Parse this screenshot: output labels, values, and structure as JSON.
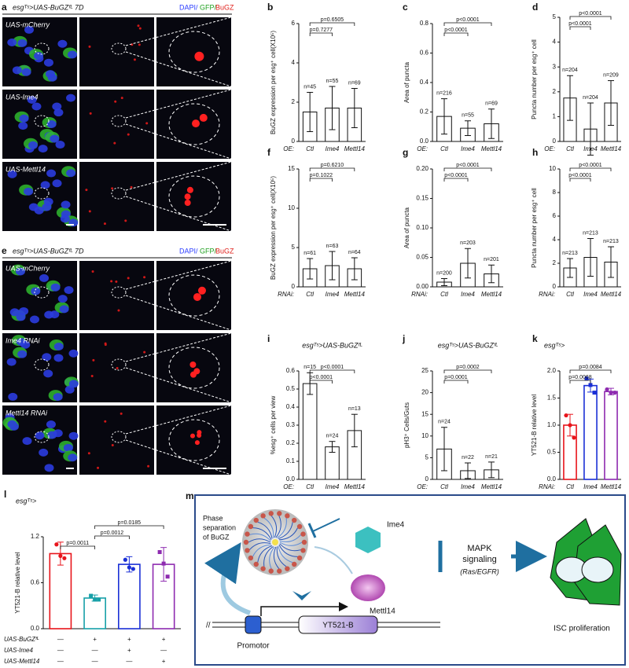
{
  "image_panels": [
    {
      "panel_label": "a",
      "title": "esgᵀˢ>UAS-BuGZᶠᴸ 7D",
      "channels": [
        {
          "text": "DAPI/",
          "color": "#2b3cff"
        },
        {
          "text": "GFP/",
          "color": "#1fa01f"
        },
        {
          "text": "BuGZ",
          "color": "#e0201b"
        }
      ],
      "rows": [
        "UAS-mCherry",
        "UAS-Ime4",
        "UAS-Mettl14"
      ]
    },
    {
      "panel_label": "e",
      "title": "esgᵀˢ>UAS-BuGZᶠᴸ 7D",
      "channels": [
        {
          "text": "DAPI/",
          "color": "#2b3cff"
        },
        {
          "text": "GFP/",
          "color": "#1fa01f"
        },
        {
          "text": "BuGZ",
          "color": "#e0201b"
        }
      ],
      "rows": [
        "UAS-mCherry",
        "Ime4 RNAi",
        "Mettl14 RNAi"
      ]
    }
  ],
  "chart_data": [
    {
      "type": "bar",
      "panel_label": "b",
      "ylabel": "BuGZ expression per esg⁺ cell(X10⁵)",
      "group_label": "OE:",
      "categories": [
        "Ctl",
        "Ime4",
        "Mettl14"
      ],
      "colors": [
        "#e8141b",
        "#1a2fd6",
        "#8e2bb0"
      ],
      "bar_style": "black-outline",
      "values": [
        1.5,
        1.7,
        1.7
      ],
      "errors": [
        1.0,
        1.1,
        1.0
      ],
      "n_labels": [
        "n=45",
        "n=55",
        "n=69"
      ],
      "comparisons": [
        {
          "from": 0,
          "to": 1,
          "label": "p=0.7277"
        },
        {
          "from": 0,
          "to": 2,
          "label": "p=0.6505"
        }
      ],
      "ylim": [
        0,
        6
      ],
      "yticks": [
        0,
        2,
        4,
        6
      ]
    },
    {
      "type": "bar",
      "panel_label": "c",
      "ylabel": "Area of puncta",
      "group_label": "OE:",
      "categories": [
        "Ctl",
        "Ime4",
        "Mettl14"
      ],
      "colors": [
        "#e8141b",
        "#1a2fd6",
        "#8e2bb0"
      ],
      "bar_style": "black-outline",
      "values": [
        0.17,
        0.09,
        0.12
      ],
      "errors": [
        0.12,
        0.05,
        0.1
      ],
      "n_labels": [
        "n=216",
        "n=55",
        "n=69"
      ],
      "comparisons": [
        {
          "from": 0,
          "to": 1,
          "label": "p<0.0001"
        },
        {
          "from": 0,
          "to": 2,
          "label": "p<0.0001"
        }
      ],
      "ylim": [
        0,
        0.8
      ],
      "yticks": [
        {
          "value": 0,
          "label": "0.0"
        },
        0.2,
        0.4,
        0.6,
        0.8
      ]
    },
    {
      "type": "bar",
      "panel_label": "d",
      "ylabel": "Puncta number per esg⁺ cell",
      "group_label": "OE:",
      "categories": [
        "Ctl",
        "Ime4",
        "Mettl14"
      ],
      "colors": [
        "#e8141b",
        "#1a2fd6",
        "#8e2bb0"
      ],
      "bar_style": "black-outline",
      "values": [
        1.75,
        0.5,
        1.55
      ],
      "errors": [
        0.9,
        1.05,
        0.9
      ],
      "n_labels": [
        "n=204",
        "n=204",
        "n=209"
      ],
      "comparisons": [
        {
          "from": 0,
          "to": 1,
          "label": "p<0.0001"
        },
        {
          "from": 0,
          "to": 2,
          "label": "p<0.0001"
        }
      ],
      "ylim": [
        0,
        5
      ],
      "yticks": [
        0,
        1,
        2,
        3,
        4,
        5
      ]
    },
    {
      "type": "bar",
      "panel_label": "f",
      "ylabel": "BuGZ expression per esg⁺ cell(X10⁵)",
      "group_label": "RNAi:",
      "categories": [
        "Ctl",
        "Ime4",
        "Mettl14"
      ],
      "colors": [
        "#e8141b",
        "#1a2fd6",
        "#8e2bb0"
      ],
      "bar_style": "black-outline",
      "values": [
        2.3,
        2.7,
        2.3
      ],
      "errors": [
        1.3,
        1.8,
        1.4
      ],
      "n_labels": [
        "n=61",
        "n=63",
        "n=64"
      ],
      "comparisons": [
        {
          "from": 0,
          "to": 1,
          "label": "p=0.1022"
        },
        {
          "from": 0,
          "to": 2,
          "label": "p=0.6210"
        }
      ],
      "ylim": [
        0,
        15
      ],
      "yticks": [
        0,
        5,
        10,
        15
      ]
    },
    {
      "type": "bar",
      "panel_label": "g",
      "ylabel": "Area of puncta",
      "group_label": "RNAi:",
      "categories": [
        "Ctl",
        "Ime4",
        "Mettl14"
      ],
      "colors": [
        "#e8141b",
        "#1a2fd6",
        "#8e2bb0"
      ],
      "bar_style": "black-outline",
      "values": [
        0.008,
        0.04,
        0.022
      ],
      "errors": [
        0.006,
        0.025,
        0.015
      ],
      "n_labels": [
        "n=200",
        "n=203",
        "n=201"
      ],
      "comparisons": [
        {
          "from": 0,
          "to": 1,
          "label": "p<0.0001"
        },
        {
          "from": 0,
          "to": 2,
          "label": "p<0.0001"
        }
      ],
      "ylim": [
        0,
        0.2
      ],
      "yticks": [
        {
          "value": 0,
          "label": "0.00"
        },
        0.05,
        {
          "value": 0.1,
          "label": "0.10"
        },
        0.15,
        {
          "value": 0.2,
          "label": "0.20"
        }
      ]
    },
    {
      "type": "bar",
      "panel_label": "h",
      "ylabel": "Puncta number per esg⁺ cell",
      "group_label": "RNAi:",
      "categories": [
        "Ctl",
        "Ime4",
        "Mettl14"
      ],
      "colors": [
        "#e8141b",
        "#1a2fd6",
        "#8e2bb0"
      ],
      "bar_style": "black-outline",
      "values": [
        1.6,
        2.5,
        2.1
      ],
      "errors": [
        0.8,
        1.6,
        1.3
      ],
      "n_labels": [
        "n=213",
        "n=213",
        "n=213"
      ],
      "comparisons": [
        {
          "from": 0,
          "to": 1,
          "label": "p<0.0001"
        },
        {
          "from": 0,
          "to": 2,
          "label": "p<0.0001"
        }
      ],
      "ylim": [
        0,
        10
      ],
      "yticks": [
        0,
        2,
        4,
        6,
        8,
        10
      ]
    },
    {
      "type": "bar",
      "panel_label": "i",
      "title": "esgᵀˢ>UAS-BuGZᶠᴸ",
      "ylabel": "%esg⁺ cells per view",
      "group_label": "OE:",
      "categories": [
        "Ctl",
        "Ime4",
        "Mettl14"
      ],
      "colors": [
        "#e8141b",
        "#1a2fd6",
        "#8e2bb0"
      ],
      "bar_style": "black-outline",
      "values": [
        0.53,
        0.18,
        0.27
      ],
      "errors": [
        0.06,
        0.03,
        0.09
      ],
      "n_labels": [
        "n=15",
        "n=24",
        "n=13"
      ],
      "comparisons": [
        {
          "from": 0,
          "to": 1,
          "label": "p<0.0001"
        },
        {
          "from": 0,
          "to": 2,
          "label": "p<0.0001"
        }
      ],
      "ylim": [
        0,
        0.6
      ],
      "yticks": [
        {
          "value": 0,
          "label": "0.0"
        },
        0.1,
        0.2,
        0.3,
        0.4,
        0.5,
        0.6
      ]
    },
    {
      "type": "bar",
      "panel_label": "j",
      "title": "esgᵀˢ>UAS-BuGZᶠᴸ",
      "ylabel": "pH3⁺ Cells/Guts",
      "group_label": "OE:",
      "categories": [
        "Ctl",
        "Ime4",
        "Mettl14"
      ],
      "colors": [
        "#e8141b",
        "#1a2fd6",
        "#8e2bb0"
      ],
      "bar_style": "black-outline",
      "values": [
        7,
        2,
        2.2
      ],
      "errors": [
        5,
        1.8,
        1.8
      ],
      "n_labels": [
        "n=24",
        "n=22",
        "n=21"
      ],
      "comparisons": [
        {
          "from": 0,
          "to": 1,
          "label": "p=0.0001"
        },
        {
          "from": 0,
          "to": 2,
          "label": "p=0.0002"
        }
      ],
      "ylim": [
        0,
        25
      ],
      "yticks": [
        0,
        5,
        10,
        15,
        20,
        25
      ]
    },
    {
      "type": "bar",
      "panel_label": "k",
      "annotation": "esgᵀˢ>",
      "ylabel": "YT521-B relative level",
      "group_label": "RNAi:",
      "categories": [
        "Ctl",
        "Ime4",
        "Mettl14"
      ],
      "colors": [
        "#e8141b",
        "#1a2fd6",
        "#8e2bb0"
      ],
      "bar_style": "colored-outline",
      "values": [
        1.0,
        1.73,
        1.62
      ],
      "errors": [
        0.2,
        0.12,
        0.06
      ],
      "points": [
        [
          1.18,
          1.0,
          0.77
        ],
        [
          1.86,
          1.74,
          1.6
        ],
        [
          1.66,
          1.6,
          1.6
        ]
      ],
      "comparisons": [
        {
          "from": 0,
          "to": 1,
          "label": "p=0.0068"
        },
        {
          "from": 0,
          "to": 2,
          "label": "p=0.0084"
        }
      ],
      "ylim": [
        0,
        2.0
      ],
      "yticks": [
        {
          "value": 0,
          "label": "0.0"
        },
        0.5,
        {
          "value": 1,
          "label": "1.0"
        },
        1.5,
        {
          "value": 2,
          "label": "2.0"
        }
      ]
    },
    {
      "type": "bar",
      "panel_label": "l",
      "annotation": "esgᵀˢ>",
      "ylabel": "YT521-B relative level",
      "categories": [
        null,
        null,
        null,
        null
      ],
      "colors": [
        "#e8141b",
        "#17a0a8",
        "#1a2fd6",
        "#8e2bb0"
      ],
      "bar_style": "colored-outline",
      "values": [
        0.98,
        0.4,
        0.84,
        0.84
      ],
      "errors": [
        0.15,
        0.04,
        0.1,
        0.22
      ],
      "points": [
        [
          1.1,
          0.95,
          0.92
        ],
        [
          0.43,
          0.38,
          0.38
        ],
        [
          0.9,
          0.8,
          0.78
        ],
        [
          1.0,
          0.85,
          0.68
        ]
      ],
      "comparisons": [
        {
          "from": 0,
          "to": 1,
          "label": "p=0.0011"
        },
        {
          "from": 1,
          "to": 2,
          "label": "p=0.0012"
        },
        {
          "from": 1,
          "to": 3,
          "label": "p=0.0185"
        }
      ],
      "conditions": [
        {
          "name": "UAS-BuGZᶠᴸ",
          "marks": [
            "—",
            "+",
            "+",
            "+"
          ]
        },
        {
          "name": "UAS-Ime4",
          "marks": [
            "—",
            "—",
            "+",
            "—"
          ]
        },
        {
          "name": "UAS-Mettl14",
          "marks": [
            "—",
            "—",
            "—",
            "+"
          ]
        }
      ],
      "ylim": [
        0,
        1.2
      ],
      "yticks": [
        {
          "value": 0,
          "label": "0.0"
        },
        0.6,
        1.2
      ]
    }
  ],
  "diagram": {
    "panel_label": "m",
    "phase_label": [
      "Phase",
      "separation",
      "of BuGZ"
    ],
    "writer1": "Ime4",
    "writer2": "Mettl14",
    "pathway": [
      "MAPK",
      "signaling"
    ],
    "pathway_sub": "(Ras/EGFR)",
    "gene": "YT521-B",
    "promoter": "Promotor",
    "outcome": "ISC proliferation"
  }
}
